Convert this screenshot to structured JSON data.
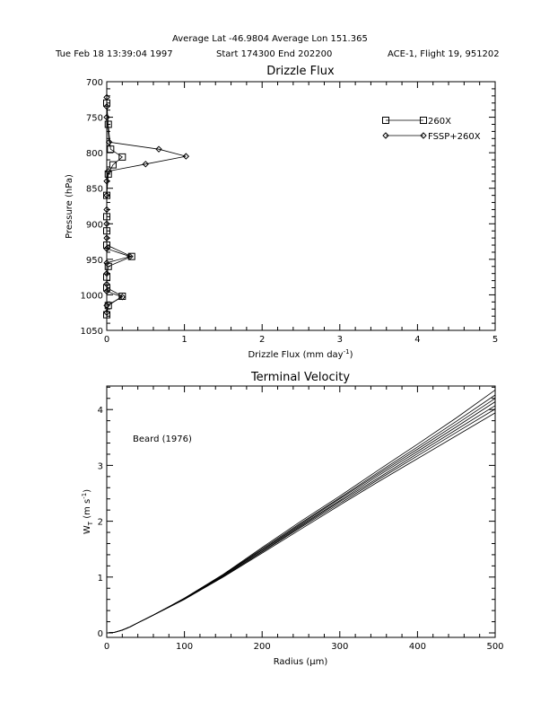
{
  "header": {
    "line1": "Average Lat  -46.9804  Average Lon  151.365",
    "date": "Tue Feb 18 13:39:04 1997",
    "time_range": "Start  174300  End  202200",
    "flight": "ACE-1, Flight 19, 951202"
  },
  "chart_data": [
    {
      "type": "line",
      "title": "Drizzle Flux",
      "xlabel": "Drizzle Flux (mm day",
      "xlabel_sup": "-1",
      "xlabel_end": ")",
      "ylabel": "Pressure (hPa)",
      "xlim": [
        0,
        5
      ],
      "ylim": [
        1050,
        700
      ],
      "y_inverted": true,
      "x_ticks": [
        0,
        1,
        2,
        3,
        4,
        5
      ],
      "y_ticks": [
        700,
        750,
        800,
        850,
        900,
        950,
        1000,
        1050
      ],
      "legend_position": "top-right",
      "series": [
        {
          "name": "260X",
          "marker": "square",
          "x": [
            0.0,
            0.02,
            0.05,
            0.2,
            0.08,
            0.02,
            0.0,
            0.0,
            0.0,
            0.0,
            0.32,
            0.02,
            0.0,
            0.0,
            0.2,
            0.02,
            0.0
          ],
          "y": [
            730,
            760,
            795,
            806,
            817,
            830,
            860,
            890,
            910,
            930,
            946,
            960,
            975,
            990,
            1002,
            1015,
            1028
          ]
        },
        {
          "name": "FSSP+260X",
          "marker": "diamond",
          "x": [
            0.0,
            0.0,
            0.0,
            0.03,
            0.67,
            1.02,
            0.5,
            0.02,
            0.0,
            0.0,
            0.0,
            0.0,
            0.0,
            0.0,
            0.3,
            0.0,
            0.0,
            0.0,
            0.0,
            0.2,
            0.0,
            0.0
          ],
          "y": [
            722,
            735,
            750,
            785,
            795,
            805,
            816,
            826,
            840,
            860,
            880,
            900,
            920,
            935,
            946,
            955,
            970,
            985,
            995,
            1003,
            1015,
            1025
          ]
        }
      ]
    },
    {
      "type": "line",
      "title": "Terminal Velocity",
      "xlabel": "Radius (µm)",
      "ylabel": "W",
      "ylabel_sub": "T",
      "ylabel_end": " (m s",
      "ylabel_sup": "-1",
      "ylabel_close": ")",
      "xlim": [
        0,
        500
      ],
      "ylim": [
        0,
        4.5
      ],
      "x_ticks": [
        0,
        100,
        200,
        300,
        400,
        500
      ],
      "y_ticks": [
        0,
        1,
        2,
        3,
        4
      ],
      "annotation": "Beard (1976)",
      "x": [
        0,
        10,
        20,
        30,
        40,
        50,
        60,
        80,
        100,
        150,
        200,
        250,
        300,
        350,
        400,
        450,
        500
      ],
      "series": [
        {
          "values": [
            0,
            0.01,
            0.05,
            0.11,
            0.18,
            0.25,
            0.32,
            0.47,
            0.62,
            1.05,
            1.53,
            2.0,
            2.45,
            2.92,
            3.38,
            3.85,
            4.35
          ]
        },
        {
          "values": [
            0,
            0.01,
            0.05,
            0.11,
            0.18,
            0.25,
            0.32,
            0.47,
            0.62,
            1.04,
            1.51,
            1.97,
            2.42,
            2.88,
            3.33,
            3.79,
            4.26
          ]
        },
        {
          "values": [
            0,
            0.01,
            0.05,
            0.11,
            0.18,
            0.25,
            0.32,
            0.47,
            0.62,
            1.04,
            1.49,
            1.95,
            2.4,
            2.85,
            3.29,
            3.74,
            4.2
          ]
        },
        {
          "values": [
            0,
            0.01,
            0.05,
            0.11,
            0.18,
            0.25,
            0.32,
            0.47,
            0.61,
            1.03,
            1.48,
            1.93,
            2.37,
            2.82,
            3.25,
            3.69,
            4.14
          ]
        },
        {
          "values": [
            0,
            0.01,
            0.05,
            0.11,
            0.18,
            0.25,
            0.32,
            0.46,
            0.61,
            1.02,
            1.46,
            1.91,
            2.35,
            2.78,
            3.21,
            3.64,
            4.07
          ]
        },
        {
          "values": [
            0,
            0.01,
            0.05,
            0.11,
            0.18,
            0.25,
            0.32,
            0.46,
            0.6,
            1.01,
            1.45,
            1.89,
            2.32,
            2.75,
            3.17,
            3.59,
            4.01
          ]
        },
        {
          "values": [
            0,
            0.01,
            0.05,
            0.11,
            0.18,
            0.25,
            0.32,
            0.46,
            0.6,
            1.0,
            1.43,
            1.86,
            2.29,
            2.71,
            3.12,
            3.53,
            3.94
          ]
        }
      ]
    }
  ]
}
